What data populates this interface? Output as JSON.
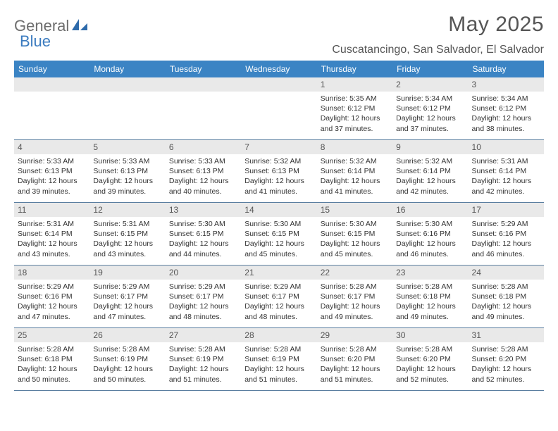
{
  "colors": {
    "header_bg": "#3b84c4",
    "header_text": "#ffffff",
    "daynum_bg": "#e9e9e9",
    "daynum_text": "#555555",
    "body_text": "#333333",
    "rule": "#5a7ea0",
    "logo_gray": "#6d6d6d",
    "logo_blue": "#3b7bbf"
  },
  "logo": {
    "word1": "General",
    "word2": "Blue"
  },
  "title": "May 2025",
  "location": "Cuscatancingo, San Salvador, El Salvador",
  "weekdays": [
    "Sunday",
    "Monday",
    "Tuesday",
    "Wednesday",
    "Thursday",
    "Friday",
    "Saturday"
  ],
  "weeks": [
    [
      {
        "n": "",
        "empty": true
      },
      {
        "n": "",
        "empty": true
      },
      {
        "n": "",
        "empty": true
      },
      {
        "n": "",
        "empty": true
      },
      {
        "n": "1",
        "sunrise": "Sunrise: 5:35 AM",
        "sunset": "Sunset: 6:12 PM",
        "daylight": "Daylight: 12 hours and 37 minutes."
      },
      {
        "n": "2",
        "sunrise": "Sunrise: 5:34 AM",
        "sunset": "Sunset: 6:12 PM",
        "daylight": "Daylight: 12 hours and 37 minutes."
      },
      {
        "n": "3",
        "sunrise": "Sunrise: 5:34 AM",
        "sunset": "Sunset: 6:12 PM",
        "daylight": "Daylight: 12 hours and 38 minutes."
      }
    ],
    [
      {
        "n": "4",
        "sunrise": "Sunrise: 5:33 AM",
        "sunset": "Sunset: 6:13 PM",
        "daylight": "Daylight: 12 hours and 39 minutes."
      },
      {
        "n": "5",
        "sunrise": "Sunrise: 5:33 AM",
        "sunset": "Sunset: 6:13 PM",
        "daylight": "Daylight: 12 hours and 39 minutes."
      },
      {
        "n": "6",
        "sunrise": "Sunrise: 5:33 AM",
        "sunset": "Sunset: 6:13 PM",
        "daylight": "Daylight: 12 hours and 40 minutes."
      },
      {
        "n": "7",
        "sunrise": "Sunrise: 5:32 AM",
        "sunset": "Sunset: 6:13 PM",
        "daylight": "Daylight: 12 hours and 41 minutes."
      },
      {
        "n": "8",
        "sunrise": "Sunrise: 5:32 AM",
        "sunset": "Sunset: 6:14 PM",
        "daylight": "Daylight: 12 hours and 41 minutes."
      },
      {
        "n": "9",
        "sunrise": "Sunrise: 5:32 AM",
        "sunset": "Sunset: 6:14 PM",
        "daylight": "Daylight: 12 hours and 42 minutes."
      },
      {
        "n": "10",
        "sunrise": "Sunrise: 5:31 AM",
        "sunset": "Sunset: 6:14 PM",
        "daylight": "Daylight: 12 hours and 42 minutes."
      }
    ],
    [
      {
        "n": "11",
        "sunrise": "Sunrise: 5:31 AM",
        "sunset": "Sunset: 6:14 PM",
        "daylight": "Daylight: 12 hours and 43 minutes."
      },
      {
        "n": "12",
        "sunrise": "Sunrise: 5:31 AM",
        "sunset": "Sunset: 6:15 PM",
        "daylight": "Daylight: 12 hours and 43 minutes."
      },
      {
        "n": "13",
        "sunrise": "Sunrise: 5:30 AM",
        "sunset": "Sunset: 6:15 PM",
        "daylight": "Daylight: 12 hours and 44 minutes."
      },
      {
        "n": "14",
        "sunrise": "Sunrise: 5:30 AM",
        "sunset": "Sunset: 6:15 PM",
        "daylight": "Daylight: 12 hours and 45 minutes."
      },
      {
        "n": "15",
        "sunrise": "Sunrise: 5:30 AM",
        "sunset": "Sunset: 6:15 PM",
        "daylight": "Daylight: 12 hours and 45 minutes."
      },
      {
        "n": "16",
        "sunrise": "Sunrise: 5:30 AM",
        "sunset": "Sunset: 6:16 PM",
        "daylight": "Daylight: 12 hours and 46 minutes."
      },
      {
        "n": "17",
        "sunrise": "Sunrise: 5:29 AM",
        "sunset": "Sunset: 6:16 PM",
        "daylight": "Daylight: 12 hours and 46 minutes."
      }
    ],
    [
      {
        "n": "18",
        "sunrise": "Sunrise: 5:29 AM",
        "sunset": "Sunset: 6:16 PM",
        "daylight": "Daylight: 12 hours and 47 minutes."
      },
      {
        "n": "19",
        "sunrise": "Sunrise: 5:29 AM",
        "sunset": "Sunset: 6:17 PM",
        "daylight": "Daylight: 12 hours and 47 minutes."
      },
      {
        "n": "20",
        "sunrise": "Sunrise: 5:29 AM",
        "sunset": "Sunset: 6:17 PM",
        "daylight": "Daylight: 12 hours and 48 minutes."
      },
      {
        "n": "21",
        "sunrise": "Sunrise: 5:29 AM",
        "sunset": "Sunset: 6:17 PM",
        "daylight": "Daylight: 12 hours and 48 minutes."
      },
      {
        "n": "22",
        "sunrise": "Sunrise: 5:28 AM",
        "sunset": "Sunset: 6:17 PM",
        "daylight": "Daylight: 12 hours and 49 minutes."
      },
      {
        "n": "23",
        "sunrise": "Sunrise: 5:28 AM",
        "sunset": "Sunset: 6:18 PM",
        "daylight": "Daylight: 12 hours and 49 minutes."
      },
      {
        "n": "24",
        "sunrise": "Sunrise: 5:28 AM",
        "sunset": "Sunset: 6:18 PM",
        "daylight": "Daylight: 12 hours and 49 minutes."
      }
    ],
    [
      {
        "n": "25",
        "sunrise": "Sunrise: 5:28 AM",
        "sunset": "Sunset: 6:18 PM",
        "daylight": "Daylight: 12 hours and 50 minutes."
      },
      {
        "n": "26",
        "sunrise": "Sunrise: 5:28 AM",
        "sunset": "Sunset: 6:19 PM",
        "daylight": "Daylight: 12 hours and 50 minutes."
      },
      {
        "n": "27",
        "sunrise": "Sunrise: 5:28 AM",
        "sunset": "Sunset: 6:19 PM",
        "daylight": "Daylight: 12 hours and 51 minutes."
      },
      {
        "n": "28",
        "sunrise": "Sunrise: 5:28 AM",
        "sunset": "Sunset: 6:19 PM",
        "daylight": "Daylight: 12 hours and 51 minutes."
      },
      {
        "n": "29",
        "sunrise": "Sunrise: 5:28 AM",
        "sunset": "Sunset: 6:20 PM",
        "daylight": "Daylight: 12 hours and 51 minutes."
      },
      {
        "n": "30",
        "sunrise": "Sunrise: 5:28 AM",
        "sunset": "Sunset: 6:20 PM",
        "daylight": "Daylight: 12 hours and 52 minutes."
      },
      {
        "n": "31",
        "sunrise": "Sunrise: 5:28 AM",
        "sunset": "Sunset: 6:20 PM",
        "daylight": "Daylight: 12 hours and 52 minutes."
      }
    ]
  ]
}
